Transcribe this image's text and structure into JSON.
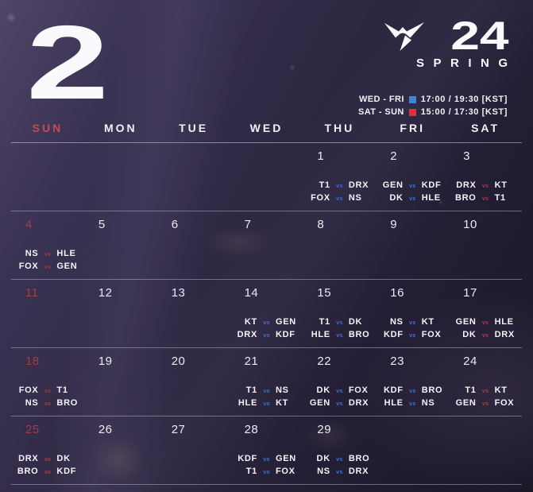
{
  "colors": {
    "accent_red": "#cf4850",
    "date_red": "#a43b45",
    "vs_blue": "#3e6ecd",
    "vs_red": "#b23440",
    "legend_blue": "#3c83da",
    "legend_red": "#e0303f"
  },
  "header": {
    "month_number": "2",
    "logo_year": "24",
    "logo_season": "SPRING"
  },
  "legend": {
    "rows": [
      {
        "days": "WED - FRI",
        "color": "#3c83da",
        "time": "17:00 / 19:30  [KST]"
      },
      {
        "days": "SAT - SUN",
        "color": "#e0303f",
        "time": "15:00 / 17:30  [KST]"
      }
    ]
  },
  "calendar": {
    "vs_label": "vs",
    "day_headers": [
      "SUN",
      "MON",
      "TUE",
      "WED",
      "THU",
      "FRI",
      "SAT"
    ],
    "weeks": [
      [
        {
          "date": "",
          "matches": []
        },
        {
          "date": "",
          "matches": []
        },
        {
          "date": "",
          "matches": []
        },
        {
          "date": "",
          "matches": []
        },
        {
          "date": "1",
          "matches": [
            {
              "t1": "T1",
              "t2": "DRX",
              "slot": "blue"
            },
            {
              "t1": "FOX",
              "t2": "NS",
              "slot": "blue"
            }
          ]
        },
        {
          "date": "2",
          "matches": [
            {
              "t1": "GEN",
              "t2": "KDF",
              "slot": "blue"
            },
            {
              "t1": "DK",
              "t2": "HLE",
              "slot": "blue"
            }
          ]
        },
        {
          "date": "3",
          "matches": [
            {
              "t1": "DRX",
              "t2": "KT",
              "slot": "red"
            },
            {
              "t1": "BRO",
              "t2": "T1",
              "slot": "red"
            }
          ]
        }
      ],
      [
        {
          "date": "4",
          "matches": [
            {
              "t1": "NS",
              "t2": "HLE",
              "slot": "red"
            },
            {
              "t1": "FOX",
              "t2": "GEN",
              "slot": "red"
            }
          ]
        },
        {
          "date": "5",
          "matches": []
        },
        {
          "date": "6",
          "matches": []
        },
        {
          "date": "7",
          "matches": []
        },
        {
          "date": "8",
          "matches": []
        },
        {
          "date": "9",
          "matches": []
        },
        {
          "date": "10",
          "matches": []
        }
      ],
      [
        {
          "date": "11",
          "matches": []
        },
        {
          "date": "12",
          "matches": []
        },
        {
          "date": "13",
          "matches": []
        },
        {
          "date": "14",
          "matches": [
            {
              "t1": "KT",
              "t2": "GEN",
              "slot": "blue"
            },
            {
              "t1": "DRX",
              "t2": "KDF",
              "slot": "blue"
            }
          ]
        },
        {
          "date": "15",
          "matches": [
            {
              "t1": "T1",
              "t2": "DK",
              "slot": "blue"
            },
            {
              "t1": "HLE",
              "t2": "BRO",
              "slot": "blue"
            }
          ]
        },
        {
          "date": "16",
          "matches": [
            {
              "t1": "NS",
              "t2": "KT",
              "slot": "blue"
            },
            {
              "t1": "KDF",
              "t2": "FOX",
              "slot": "blue"
            }
          ]
        },
        {
          "date": "17",
          "matches": [
            {
              "t1": "GEN",
              "t2": "HLE",
              "slot": "red"
            },
            {
              "t1": "DK",
              "t2": "DRX",
              "slot": "red"
            }
          ]
        }
      ],
      [
        {
          "date": "18",
          "matches": [
            {
              "t1": "FOX",
              "t2": "T1",
              "slot": "red"
            },
            {
              "t1": "NS",
              "t2": "BRO",
              "slot": "red"
            }
          ]
        },
        {
          "date": "19",
          "matches": []
        },
        {
          "date": "20",
          "matches": []
        },
        {
          "date": "21",
          "matches": [
            {
              "t1": "T1",
              "t2": "NS",
              "slot": "blue"
            },
            {
              "t1": "HLE",
              "t2": "KT",
              "slot": "blue"
            }
          ]
        },
        {
          "date": "22",
          "matches": [
            {
              "t1": "DK",
              "t2": "FOX",
              "slot": "blue"
            },
            {
              "t1": "GEN",
              "t2": "DRX",
              "slot": "blue"
            }
          ]
        },
        {
          "date": "23",
          "matches": [
            {
              "t1": "KDF",
              "t2": "BRO",
              "slot": "blue"
            },
            {
              "t1": "HLE",
              "t2": "NS",
              "slot": "blue"
            }
          ]
        },
        {
          "date": "24",
          "matches": [
            {
              "t1": "T1",
              "t2": "KT",
              "slot": "red"
            },
            {
              "t1": "GEN",
              "t2": "FOX",
              "slot": "red"
            }
          ]
        }
      ],
      [
        {
          "date": "25",
          "matches": [
            {
              "t1": "DRX",
              "t2": "DK",
              "slot": "red"
            },
            {
              "t1": "BRO",
              "t2": "KDF",
              "slot": "red"
            }
          ]
        },
        {
          "date": "26",
          "matches": []
        },
        {
          "date": "27",
          "matches": []
        },
        {
          "date": "28",
          "matches": [
            {
              "t1": "KDF",
              "t2": "GEN",
              "slot": "blue"
            },
            {
              "t1": "T1",
              "t2": "FOX",
              "slot": "blue"
            }
          ]
        },
        {
          "date": "29",
          "matches": [
            {
              "t1": "DK",
              "t2": "BRO",
              "slot": "blue"
            },
            {
              "t1": "NS",
              "t2": "DRX",
              "slot": "blue"
            }
          ]
        },
        {
          "date": "",
          "matches": []
        },
        {
          "date": "",
          "matches": []
        }
      ]
    ]
  }
}
